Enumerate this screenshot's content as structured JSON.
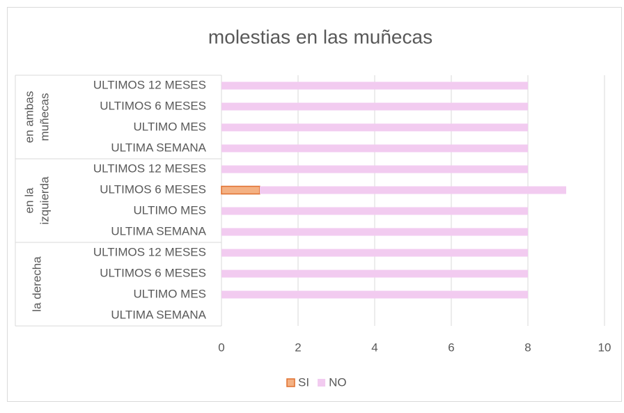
{
  "chart_data": {
    "type": "stacked_bar_horizontal",
    "title": "molestias en las muñecas",
    "groups": [
      {
        "label": [
          "en ambas",
          "muñecas"
        ],
        "size": 4
      },
      {
        "label": [
          "en la",
          "izquierda"
        ],
        "size": 4
      },
      {
        "label": [
          "la derecha"
        ],
        "size": 4
      }
    ],
    "categories": [
      "ULTIMOS 12 MESES",
      "ULTIMOS 6 MESES",
      "ULTIMO MES",
      "ULTIMA SEMANA",
      "ULTIMOS 12 MESES",
      "ULTIMOS 6 MESES",
      "ULTIMO MES",
      "ULTIMA SEMANA",
      "ULTIMOS 12 MESES",
      "ULTIMOS 6 MESES",
      "ULTIMO MES",
      "ULTIMA SEMANA"
    ],
    "series": [
      {
        "name": "SI",
        "color": "#f4b183",
        "stroke": "#e0702f",
        "values": [
          null,
          null,
          null,
          null,
          null,
          1,
          null,
          null,
          null,
          null,
          null,
          null
        ]
      },
      {
        "name": "NO",
        "color": "#f2cbf0",
        "values": [
          8,
          8,
          8,
          8,
          8,
          8,
          8,
          8,
          8,
          8,
          8,
          null
        ]
      }
    ],
    "xlim": [
      0,
      10
    ],
    "xticks": [
      0,
      2,
      4,
      6,
      8,
      10
    ],
    "grid": true,
    "legend": "bottom"
  }
}
